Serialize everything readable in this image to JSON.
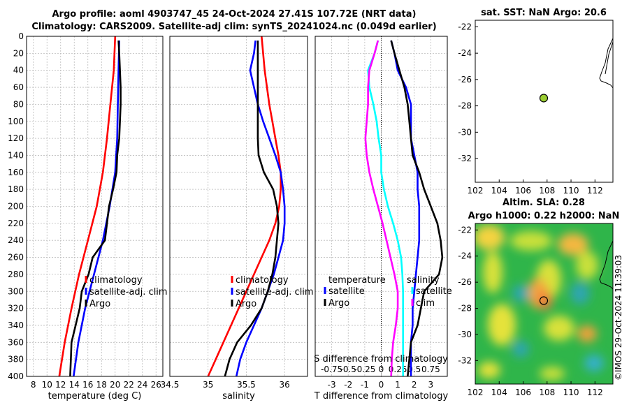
{
  "titles": {
    "line1": "Argo profile: aoml 4903747_45 24-Oct-2024 27.41S 107.72E (NRT data)",
    "line2": "Climatology: CARS2009. Satellite-adj clim: synTS_20241024.nc (0.049d earlier)",
    "sst": "sat. SST: NaN Argo: 20.6",
    "sla1": "Altim. SLA: 0.28",
    "sla2": "Argo h1000: 0.22 h2000: NaN",
    "stamp": "©IMOS 29-Oct-2024 11:39:03"
  },
  "colors": {
    "climatology": "#ff0000",
    "satellite": "#0000ff",
    "argo": "#000000",
    "salinity_diff_sat": "#00ffff",
    "salinity_diff_clim": "#ff00ff",
    "sst_marker": "#9acd32"
  },
  "chart_data": [
    {
      "type": "line",
      "id": "temp",
      "xlabel": "temperature (deg C)",
      "ylabel": "",
      "xlim": [
        7,
        27
      ],
      "ylim": [
        400,
        0
      ],
      "xticks": [
        8,
        10,
        12,
        14,
        16,
        18,
        20,
        22,
        24,
        26
      ],
      "yticks": [
        0,
        20,
        40,
        60,
        80,
        100,
        120,
        140,
        160,
        180,
        200,
        220,
        240,
        260,
        280,
        300,
        320,
        340,
        360,
        380,
        400
      ],
      "legend": [
        "climatology",
        "satellite-adj. clim",
        "Argo"
      ],
      "series": [
        {
          "name": "climatology",
          "color": "#ff0000",
          "depth": [
            0,
            40,
            80,
            120,
            160,
            200,
            240,
            280,
            320,
            360,
            400
          ],
          "values": [
            20.0,
            19.8,
            19.3,
            18.8,
            18.2,
            17.3,
            16.0,
            14.7,
            13.6,
            12.6,
            11.8
          ]
        },
        {
          "name": "satellite-adj. clim",
          "color": "#0000ff",
          "depth": [
            5,
            40,
            80,
            120,
            160,
            200,
            240,
            280,
            320,
            360,
            400
          ],
          "values": [
            20.6,
            20.5,
            20.4,
            20.3,
            20.0,
            19.2,
            18.2,
            16.9,
            15.6,
            14.6,
            13.9
          ]
        },
        {
          "name": "Argo",
          "color": "#000000",
          "depth": [
            5,
            20,
            40,
            60,
            80,
            100,
            120,
            140,
            160,
            180,
            200,
            220,
            240,
            260,
            280,
            300,
            320,
            340,
            360,
            380,
            400
          ],
          "values": [
            20.5,
            20.6,
            20.7,
            20.8,
            20.8,
            20.7,
            20.6,
            20.3,
            20.2,
            19.7,
            19.1,
            18.8,
            18.5,
            16.7,
            16.1,
            15.1,
            14.8,
            14.2,
            13.6,
            13.5,
            13.4
          ]
        }
      ]
    },
    {
      "type": "line",
      "id": "sal",
      "xlabel": "salinity",
      "ylabel": "",
      "xlim": [
        34.5,
        36.3
      ],
      "ylim": [
        400,
        0
      ],
      "xticks": [
        34.5,
        35,
        35.5,
        36
      ],
      "legend": [
        "climatology",
        "satellite-adj. clim",
        "Argo"
      ],
      "series": [
        {
          "name": "climatology",
          "color": "#ff0000",
          "depth": [
            0,
            20,
            40,
            60,
            80,
            100,
            120,
            140,
            160,
            180,
            200,
            220,
            240,
            260,
            280,
            300,
            320,
            340,
            360,
            380,
            400
          ],
          "values": [
            35.7,
            35.72,
            35.74,
            35.77,
            35.8,
            35.84,
            35.88,
            35.92,
            35.95,
            35.95,
            35.93,
            35.88,
            35.8,
            35.7,
            35.6,
            35.5,
            35.4,
            35.3,
            35.2,
            35.1,
            35.0
          ]
        },
        {
          "name": "satellite-adj. clim",
          "color": "#0000ff",
          "depth": [
            5,
            20,
            40,
            60,
            80,
            100,
            120,
            140,
            160,
            180,
            200,
            220,
            240,
            260,
            280,
            300,
            320,
            340,
            360,
            380,
            400
          ],
          "values": [
            35.62,
            35.6,
            35.55,
            35.6,
            35.65,
            35.72,
            35.8,
            35.88,
            35.95,
            35.98,
            36.0,
            36.0,
            35.98,
            35.92,
            35.86,
            35.78,
            35.7,
            35.6,
            35.5,
            35.42,
            35.37
          ]
        },
        {
          "name": "Argo",
          "color": "#000000",
          "depth": [
            5,
            20,
            40,
            60,
            80,
            100,
            120,
            140,
            160,
            180,
            200,
            220,
            240,
            260,
            280,
            300,
            320,
            340,
            360,
            380,
            400
          ],
          "values": [
            35.65,
            35.65,
            35.65,
            35.65,
            35.65,
            35.65,
            35.65,
            35.66,
            35.73,
            35.85,
            35.9,
            35.92,
            35.9,
            35.88,
            35.84,
            35.78,
            35.7,
            35.56,
            35.38,
            35.28,
            35.22
          ]
        }
      ]
    },
    {
      "type": "line",
      "id": "diff",
      "xlabel": "T difference from climatology",
      "xlabel_top": "S difference from climatology",
      "xlim": [
        -4,
        4
      ],
      "ylim": [
        400,
        0
      ],
      "xticks": [
        -3,
        -2,
        -1,
        0,
        1,
        2,
        3
      ],
      "xticklabels_top": [
        "-0.75",
        "-0.5",
        "-0.25",
        "0",
        "0.25",
        "0.5",
        "0.75"
      ],
      "legend_left_title": "temperature",
      "legend_right_title": "salinity",
      "legend": [
        "satellite",
        "Argo",
        "satellite",
        "clim"
      ],
      "series": [
        {
          "name": "T satellite",
          "color": "#0000ff",
          "depth": [
            5,
            20,
            40,
            60,
            80,
            100,
            120,
            140,
            160,
            180,
            200,
            220,
            240,
            260,
            280,
            300,
            320,
            340,
            360,
            380,
            400
          ],
          "values": [
            0.6,
            0.8,
            1.0,
            1.5,
            1.8,
            1.8,
            1.8,
            2.0,
            2.2,
            2.2,
            2.3,
            2.3,
            2.3,
            2.2,
            2.1,
            2.0,
            1.9,
            1.9,
            1.8,
            1.8,
            1.8
          ]
        },
        {
          "name": "T Argo",
          "color": "#000000",
          "depth": [
            5,
            20,
            40,
            60,
            80,
            100,
            120,
            140,
            160,
            180,
            200,
            220,
            240,
            260,
            280,
            300,
            320,
            340,
            360,
            380,
            400
          ],
          "values": [
            0.6,
            0.8,
            1.1,
            1.4,
            1.6,
            1.7,
            1.8,
            1.9,
            2.3,
            2.6,
            3.0,
            3.4,
            3.6,
            3.7,
            3.5,
            2.6,
            2.4,
            2.2,
            1.8,
            1.7,
            1.6
          ]
        },
        {
          "name": "S satellite",
          "color": "#00ffff",
          "depth": [
            5,
            20,
            40,
            60,
            80,
            100,
            120,
            140,
            160,
            180,
            200,
            220,
            240,
            260,
            280,
            300,
            320,
            340,
            360,
            380,
            400
          ],
          "values": [
            -0.05,
            -0.1,
            -0.2,
            -0.18,
            -0.12,
            -0.07,
            -0.04,
            0.0,
            0.0,
            0.04,
            0.1,
            0.18,
            0.25,
            0.3,
            0.32,
            0.33,
            0.33,
            0.33,
            0.33,
            0.33,
            0.33
          ]
        },
        {
          "name": "S clim",
          "color": "#ff00ff",
          "depth": [
            5,
            20,
            40,
            60,
            80,
            100,
            120,
            140,
            160,
            180,
            200,
            220,
            240,
            260,
            280,
            300,
            320,
            340,
            360,
            380,
            400
          ],
          "values": [
            -0.05,
            -0.1,
            -0.18,
            -0.2,
            -0.2,
            -0.22,
            -0.24,
            -0.22,
            -0.18,
            -0.12,
            -0.05,
            0.02,
            0.08,
            0.14,
            0.2,
            0.25,
            0.25,
            0.22,
            0.18,
            0.16,
            0.15
          ]
        }
      ]
    },
    {
      "type": "scatter",
      "id": "sst_map",
      "title": "sat. SST: NaN Argo: 20.6",
      "xlim": [
        102,
        113.5
      ],
      "ylim": [
        -33.8,
        -21.5
      ],
      "xticks": [
        102,
        104,
        106,
        108,
        110,
        112
      ],
      "yticks": [
        -22,
        -24,
        -26,
        -28,
        -30,
        -32
      ],
      "points": [
        {
          "x": 107.72,
          "y": -27.41
        }
      ]
    },
    {
      "type": "heatmap",
      "id": "sla_map",
      "title": "Altim. SLA: 0.28 / Argo h1000: 0.22 h2000: NaN",
      "xlim": [
        102,
        113.5
      ],
      "ylim": [
        -33.8,
        -21.5
      ],
      "xticks": [
        102,
        104,
        106,
        108,
        110,
        112
      ],
      "yticks": [
        -22,
        -24,
        -26,
        -28,
        -30,
        -32
      ],
      "points": [
        {
          "x": 107.72,
          "y": -27.41
        }
      ]
    }
  ]
}
